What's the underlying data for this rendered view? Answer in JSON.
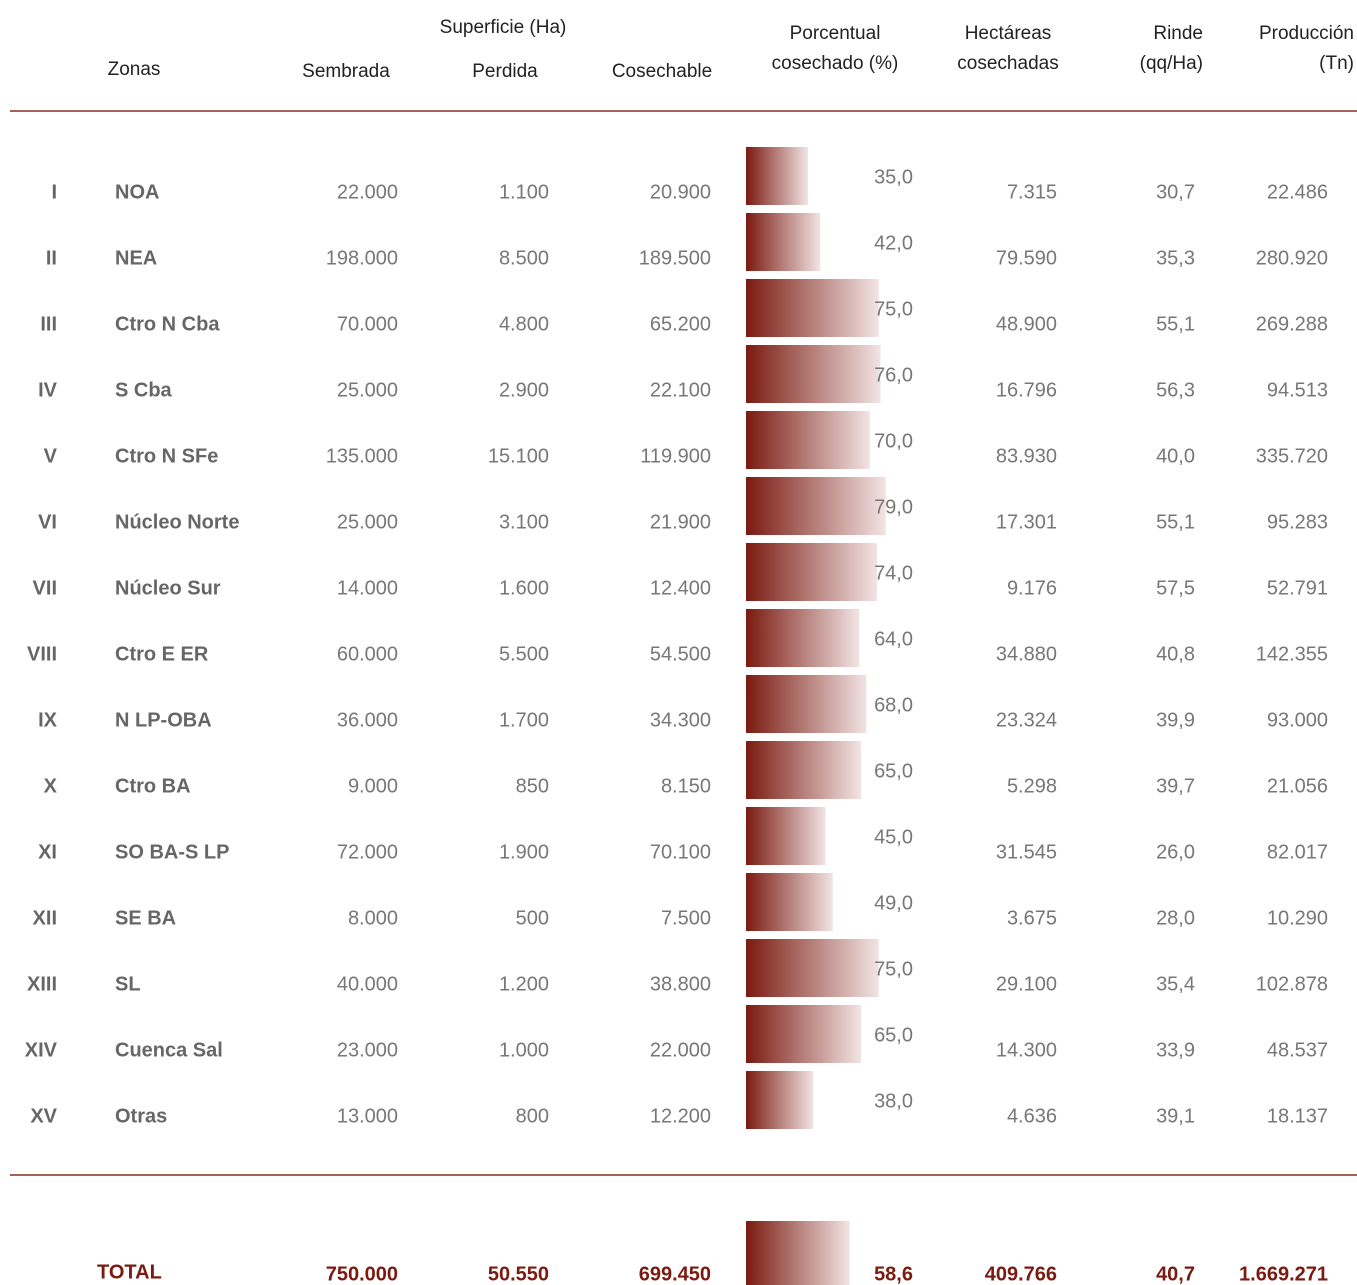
{
  "header": {
    "group": "Superficie (Ha)",
    "zonas": "Zonas",
    "sembrada": "Sembrada",
    "perdida": "Perdida",
    "cosechable": "Cosechable",
    "porcentual": [
      "Porcentual",
      "cosechado (%)"
    ],
    "hectareas": [
      "Hectáreas",
      "cosechadas"
    ],
    "rinde": [
      "Rinde",
      "(qq/Ha)"
    ],
    "produccion": [
      "Producción",
      "(Tn)"
    ]
  },
  "rows": [
    [
      "I",
      "NOA",
      "22.000",
      "1.100",
      "20.900",
      "35,0",
      "7.315",
      "30,7",
      "22.486"
    ],
    [
      "II",
      "NEA",
      "198.000",
      "8.500",
      "189.500",
      "42,0",
      "79.590",
      "35,3",
      "280.920"
    ],
    [
      "III",
      "Ctro N Cba",
      "70.000",
      "4.800",
      "65.200",
      "75,0",
      "48.900",
      "55,1",
      "269.288"
    ],
    [
      "IV",
      "S Cba",
      "25.000",
      "2.900",
      "22.100",
      "76,0",
      "16.796",
      "56,3",
      "94.513"
    ],
    [
      "V",
      "Ctro N SFe",
      "135.000",
      "15.100",
      "119.900",
      "70,0",
      "83.930",
      "40,0",
      "335.720"
    ],
    [
      "VI",
      "Núcleo Norte",
      "25.000",
      "3.100",
      "21.900",
      "79,0",
      "17.301",
      "55,1",
      "95.283"
    ],
    [
      "VII",
      "Núcleo Sur",
      "14.000",
      "1.600",
      "12.400",
      "74,0",
      "9.176",
      "57,5",
      "52.791"
    ],
    [
      "VIII",
      "Ctro E ER",
      "60.000",
      "5.500",
      "54.500",
      "64,0",
      "34.880",
      "40,8",
      "142.355"
    ],
    [
      "IX",
      "N LP-OBA",
      "36.000",
      "1.700",
      "34.300",
      "68,0",
      "23.324",
      "39,9",
      "93.000"
    ],
    [
      "X",
      "Ctro BA",
      "9.000",
      "850",
      "8.150",
      "65,0",
      "5.298",
      "39,7",
      "21.056"
    ],
    [
      "XI",
      "SO BA-S LP",
      "72.000",
      "1.900",
      "70.100",
      "45,0",
      "31.545",
      "26,0",
      "82.017"
    ],
    [
      "XII",
      "SE BA",
      "8.000",
      "500",
      "7.500",
      "49,0",
      "3.675",
      "28,0",
      "10.290"
    ],
    [
      "XIII",
      "SL",
      "40.000",
      "1.200",
      "38.800",
      "75,0",
      "29.100",
      "35,4",
      "102.878"
    ],
    [
      "XIV",
      "Cuenca Sal",
      "23.000",
      "1.000",
      "22.000",
      "65,0",
      "14.300",
      "33,9",
      "48.537"
    ],
    [
      "XV",
      "Otras",
      "13.000",
      "800",
      "12.200",
      "38,0",
      "4.636",
      "39,1",
      "18.137"
    ]
  ],
  "total": [
    "TOTAL",
    "750.000",
    "50.550",
    "699.450",
    "58,6",
    "409.766",
    "40,7",
    "1.669.271"
  ]
}
